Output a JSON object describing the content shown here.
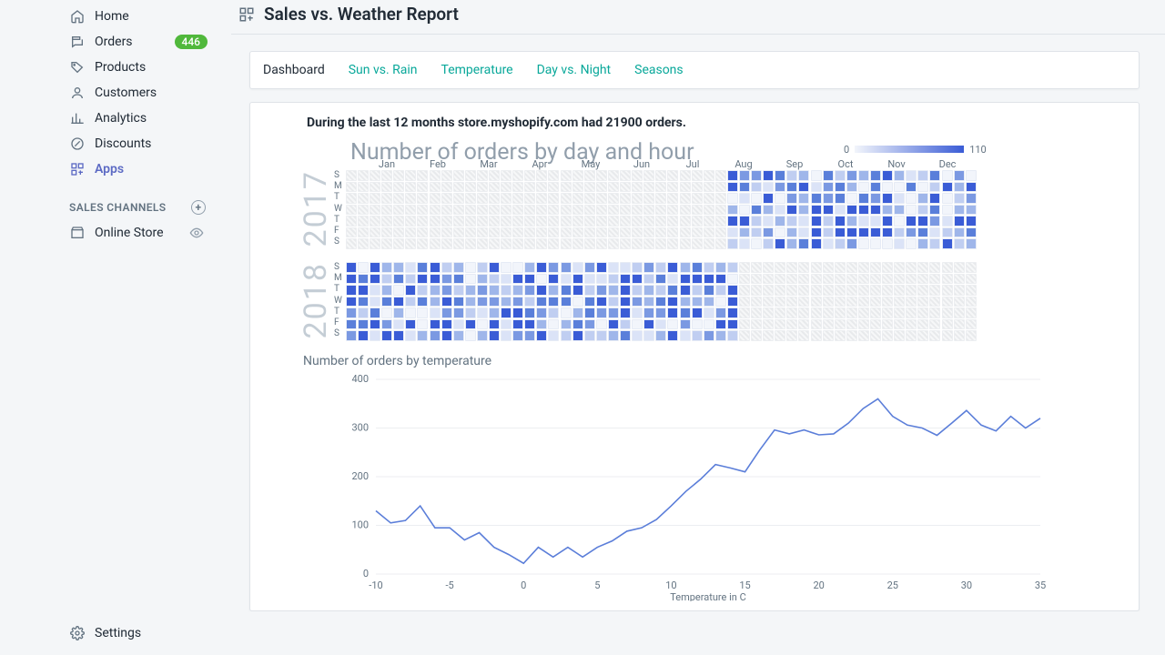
{
  "sidebar": {
    "items": [
      {
        "key": "home",
        "label": "Home"
      },
      {
        "key": "orders",
        "label": "Orders",
        "badge": "446"
      },
      {
        "key": "products",
        "label": "Products"
      },
      {
        "key": "customers",
        "label": "Customers"
      },
      {
        "key": "analytics",
        "label": "Analytics"
      },
      {
        "key": "discounts",
        "label": "Discounts"
      },
      {
        "key": "apps",
        "label": "Apps",
        "active": true
      }
    ],
    "section_label": "SALES CHANNELS",
    "channels": [
      {
        "key": "online-store",
        "label": "Online Store"
      }
    ],
    "settings_label": "Settings"
  },
  "page": {
    "title": "Sales vs. Weather Report"
  },
  "tabs": [
    {
      "key": "dashboard",
      "label": "Dashboard",
      "active": true
    },
    {
      "key": "sun-rain",
      "label": "Sun vs. Rain"
    },
    {
      "key": "temperature",
      "label": "Temperature"
    },
    {
      "key": "day-night",
      "label": "Day vs. Night"
    },
    {
      "key": "seasons",
      "label": "Seasons"
    }
  ],
  "summary": "During the last 12 months store.myshopify.com had 21900 orders.",
  "heatmap": {
    "title": "Number of orders by day and hour",
    "legend_min": "0",
    "legend_max": "110",
    "months": [
      "Jan",
      "Feb",
      "Mar",
      "Apr",
      "May",
      "Jun",
      "Jul",
      "Aug",
      "Sep",
      "Oct",
      "Nov",
      "Dec"
    ],
    "days": [
      "S",
      "M",
      "T",
      "W",
      "T",
      "F",
      "S"
    ],
    "years": [
      "2017",
      "2018"
    ],
    "weeks": 53,
    "active_start_2017_col": 32,
    "active_end_2018_col": 33,
    "color_scale": [
      "#f2f5fb",
      "#dbe3f7",
      "#c0cef1",
      "#9fb6ea",
      "#7b99e2",
      "#5a7fda",
      "#3a5cd6"
    ]
  },
  "line_chart": {
    "title": "Number of orders by temperature",
    "x_label": "Temperature in C",
    "y_min": 0,
    "y_max": 400,
    "y_step": 100,
    "x_min": -10,
    "x_max": 35,
    "x_step": 5,
    "line_color": "#5b7ed9",
    "grid_color": "#eceef1",
    "points": [
      [
        -10,
        130
      ],
      [
        -9,
        105
      ],
      [
        -8,
        110
      ],
      [
        -7,
        140
      ],
      [
        -6,
        95
      ],
      [
        -5,
        95
      ],
      [
        -4,
        70
      ],
      [
        -3,
        85
      ],
      [
        -2,
        55
      ],
      [
        -1,
        40
      ],
      [
        0,
        22
      ],
      [
        1,
        55
      ],
      [
        2,
        35
      ],
      [
        3,
        55
      ],
      [
        4,
        35
      ],
      [
        5,
        55
      ],
      [
        6,
        68
      ],
      [
        7,
        88
      ],
      [
        8,
        95
      ],
      [
        9,
        112
      ],
      [
        10,
        140
      ],
      [
        11,
        170
      ],
      [
        12,
        195
      ],
      [
        13,
        225
      ],
      [
        14,
        218
      ],
      [
        15,
        210
      ],
      [
        16,
        255
      ],
      [
        17,
        296
      ],
      [
        18,
        288
      ],
      [
        19,
        296
      ],
      [
        20,
        286
      ],
      [
        21,
        288
      ],
      [
        22,
        310
      ],
      [
        23,
        340
      ],
      [
        24,
        360
      ],
      [
        25,
        324
      ],
      [
        26,
        306
      ],
      [
        27,
        300
      ],
      [
        28,
        285
      ],
      [
        29,
        310
      ],
      [
        30,
        336
      ],
      [
        31,
        306
      ],
      [
        32,
        294
      ],
      [
        33,
        324
      ],
      [
        34,
        300
      ],
      [
        35,
        320
      ]
    ]
  }
}
